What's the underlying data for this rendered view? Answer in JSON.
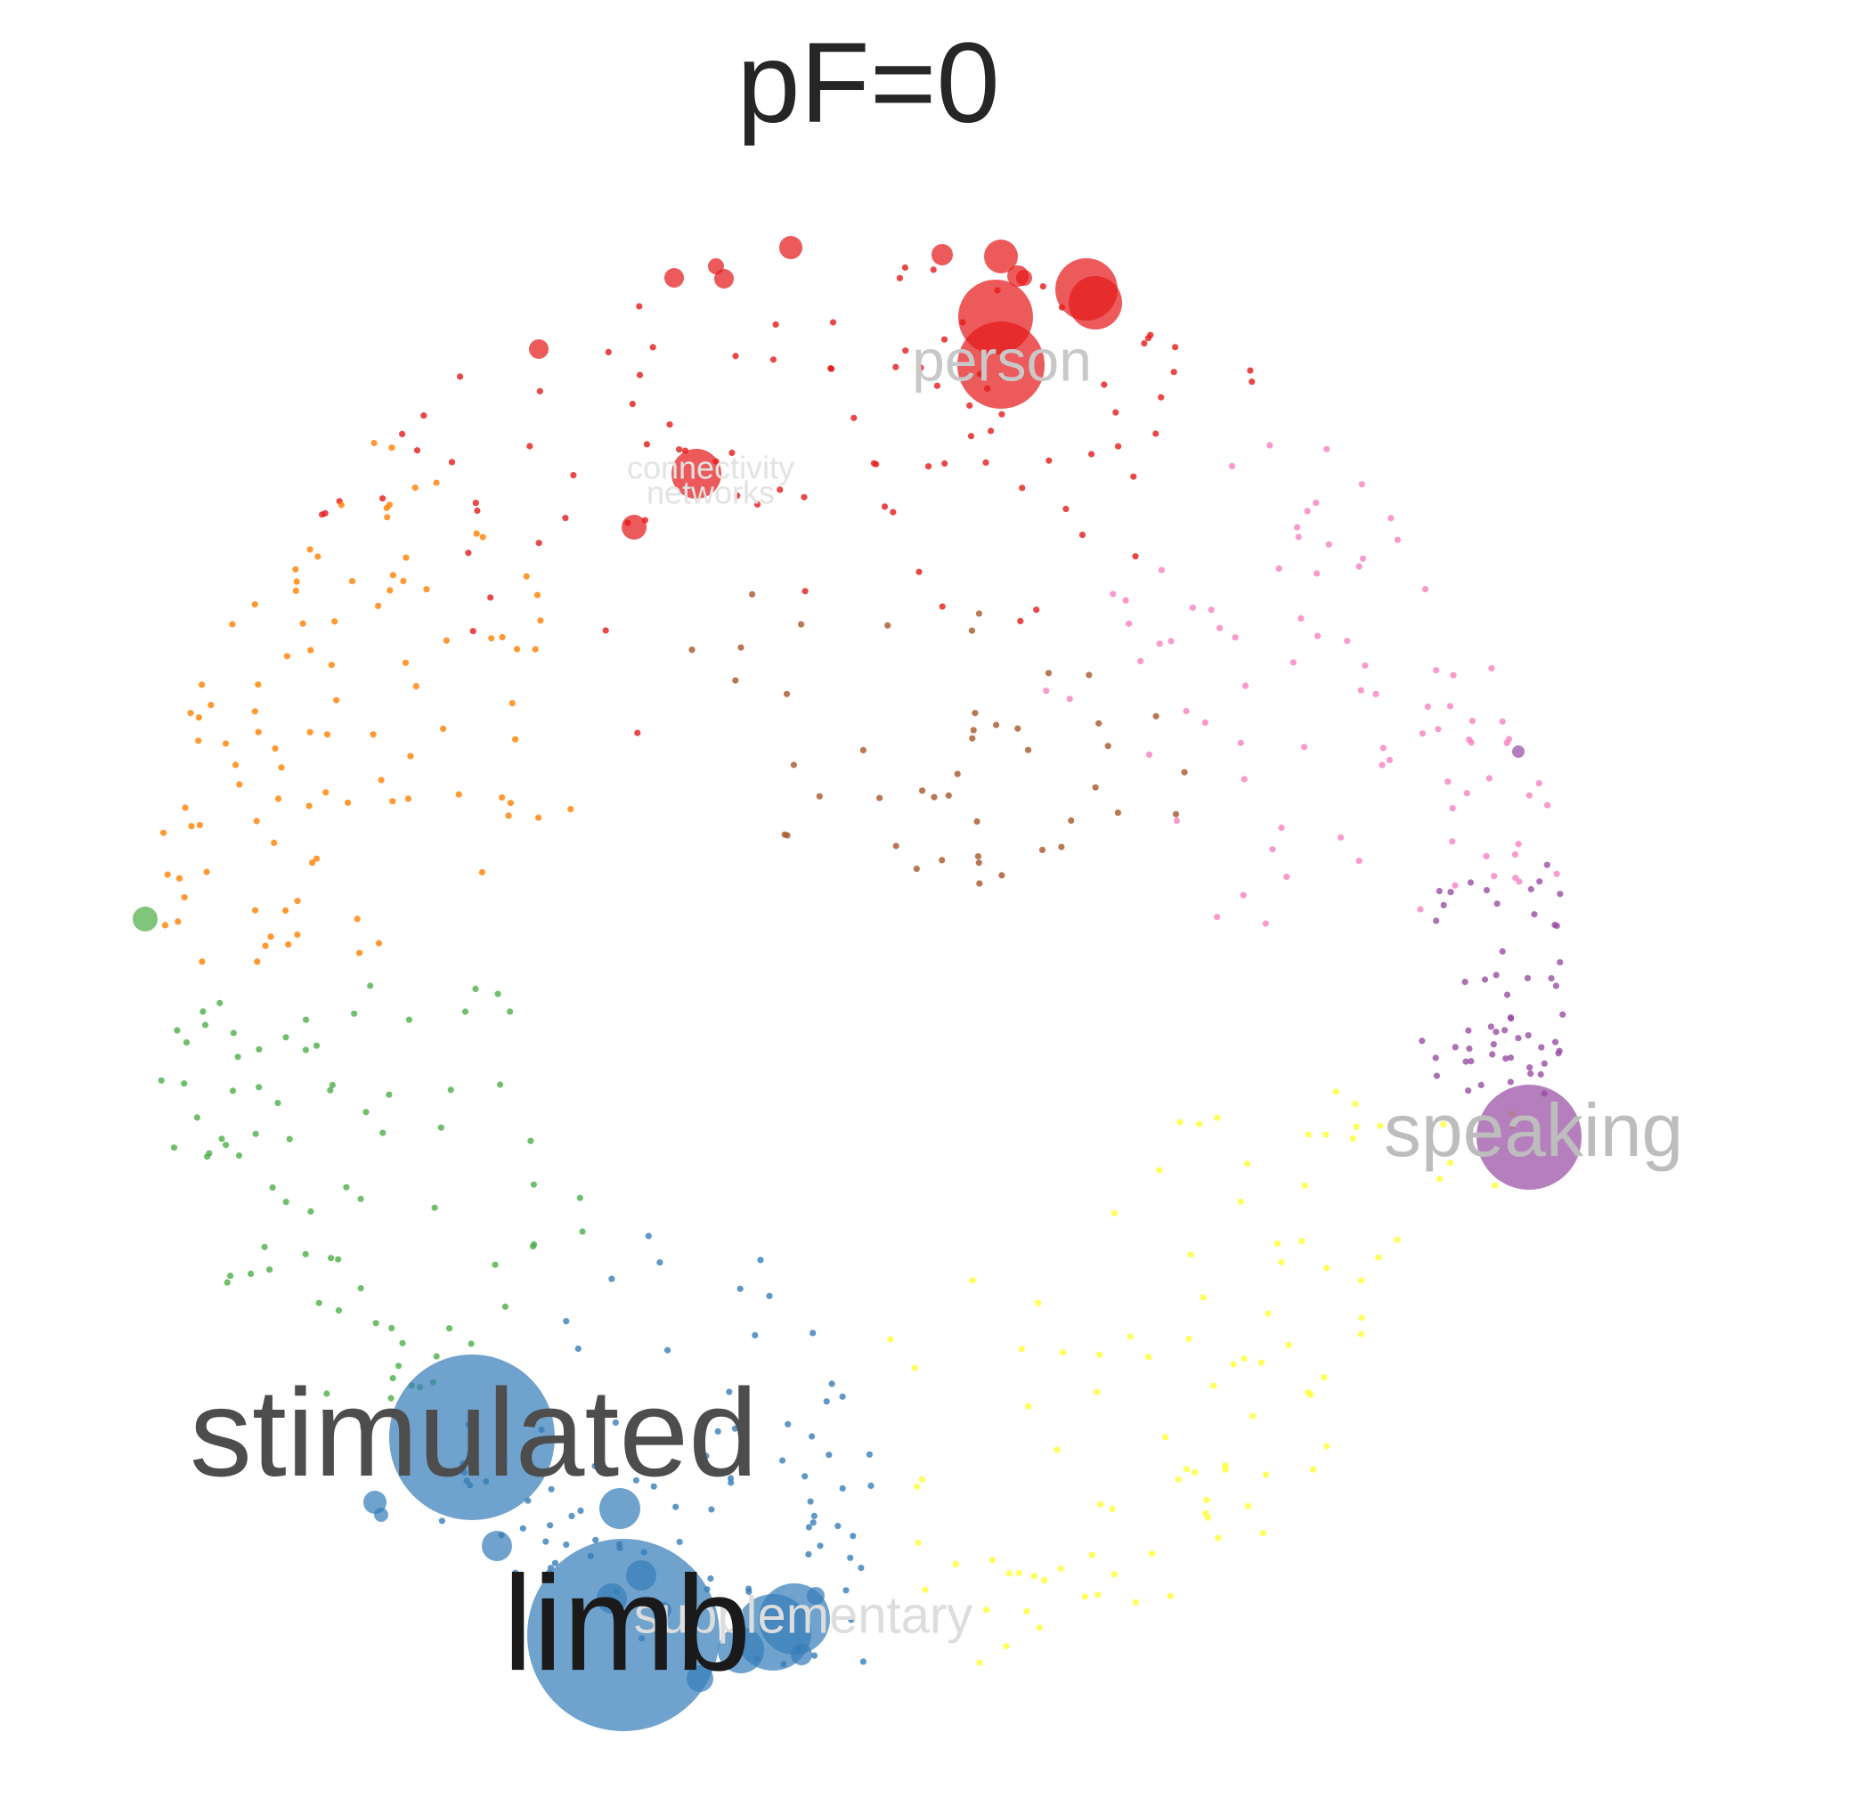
{
  "title": "pF=0",
  "clusters": [
    {
      "name": "red",
      "color": "#e41a1c"
    },
    {
      "name": "orange",
      "color": "#ff7f00"
    },
    {
      "name": "green",
      "color": "#4daf4a"
    },
    {
      "name": "blue",
      "color": "#377eb8"
    },
    {
      "name": "yellow",
      "color": "#ffff33"
    },
    {
      "name": "purple",
      "color": "#984ea3"
    },
    {
      "name": "pink",
      "color": "#f781bf"
    },
    {
      "name": "brown",
      "color": "#a65628"
    }
  ],
  "labels": [
    {
      "text": "stimulated",
      "color": "#4d4d4d"
    },
    {
      "text": "limb",
      "color": "#1a1a1a"
    },
    {
      "text": "person",
      "color": "#c8c8c8"
    },
    {
      "text": "speaking",
      "color": "#bdbdbd"
    },
    {
      "text": "supplementary",
      "color": "#dddddd"
    },
    {
      "text": "connectivity",
      "color": "#e3e3e3"
    },
    {
      "text": "networks",
      "color": "#e3e3e3"
    }
  ]
}
